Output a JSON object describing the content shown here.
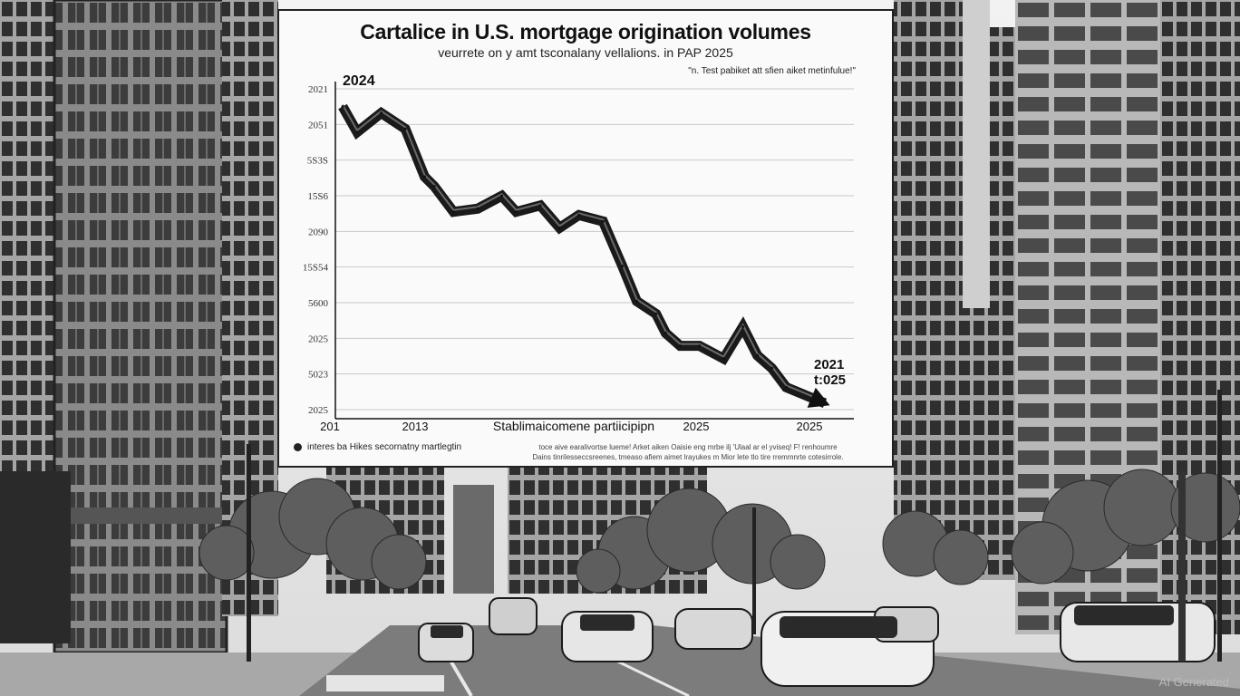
{
  "chart_data": {
    "type": "line",
    "title": "Cartalice in U.S. mortgage origination volumes",
    "subtitle": "veurrete on y amt tsconalany vellalions. in PAP 2025",
    "annotation": "\"n. Test pabiket att sfien aiket metinfulue!\"",
    "ytick_labels": [
      "2021",
      "2051",
      "5S3S",
      "15S6",
      "2090",
      "15S54",
      "5600",
      "2025",
      "5023",
      "2025"
    ],
    "xtick_labels": [
      "201",
      "2013",
      "2025",
      "2025"
    ],
    "xlabel": "Stablimaicomene partiicipipn",
    "start_label": "2024",
    "end_label_line1": "2021",
    "end_label_line2": "t:025",
    "legend": "interes ba Hikes secornatny martlegtin",
    "footnote_line1": "toce aive earalivortse lueme! Arket aiken Oaisie eng  mrbe ilj 'Ulaal ar el yviseq! F! renhoumre",
    "footnote_line2": "Dains tinrilesseccsreenes, tmeaso afiem aimet lrayukes m Mior lete tlo tire rremmnrte cotesirrole.",
    "ylim": [
      0,
      100
    ],
    "grid": true,
    "series": [
      {
        "x": [
          0,
          3,
          8,
          13,
          17,
          19,
          23,
          28,
          33,
          36,
          41,
          45,
          49,
          54,
          58,
          61,
          65,
          67,
          70,
          74,
          79,
          83,
          86,
          89,
          92,
          100
        ],
        "values": [
          95,
          87,
          93,
          88,
          73,
          70,
          62,
          63,
          67,
          62,
          64,
          57,
          61,
          59,
          45,
          34,
          30,
          24,
          20,
          20,
          16,
          26,
          17,
          13,
          7,
          2
        ]
      }
    ]
  },
  "watermark": "AI Generated"
}
